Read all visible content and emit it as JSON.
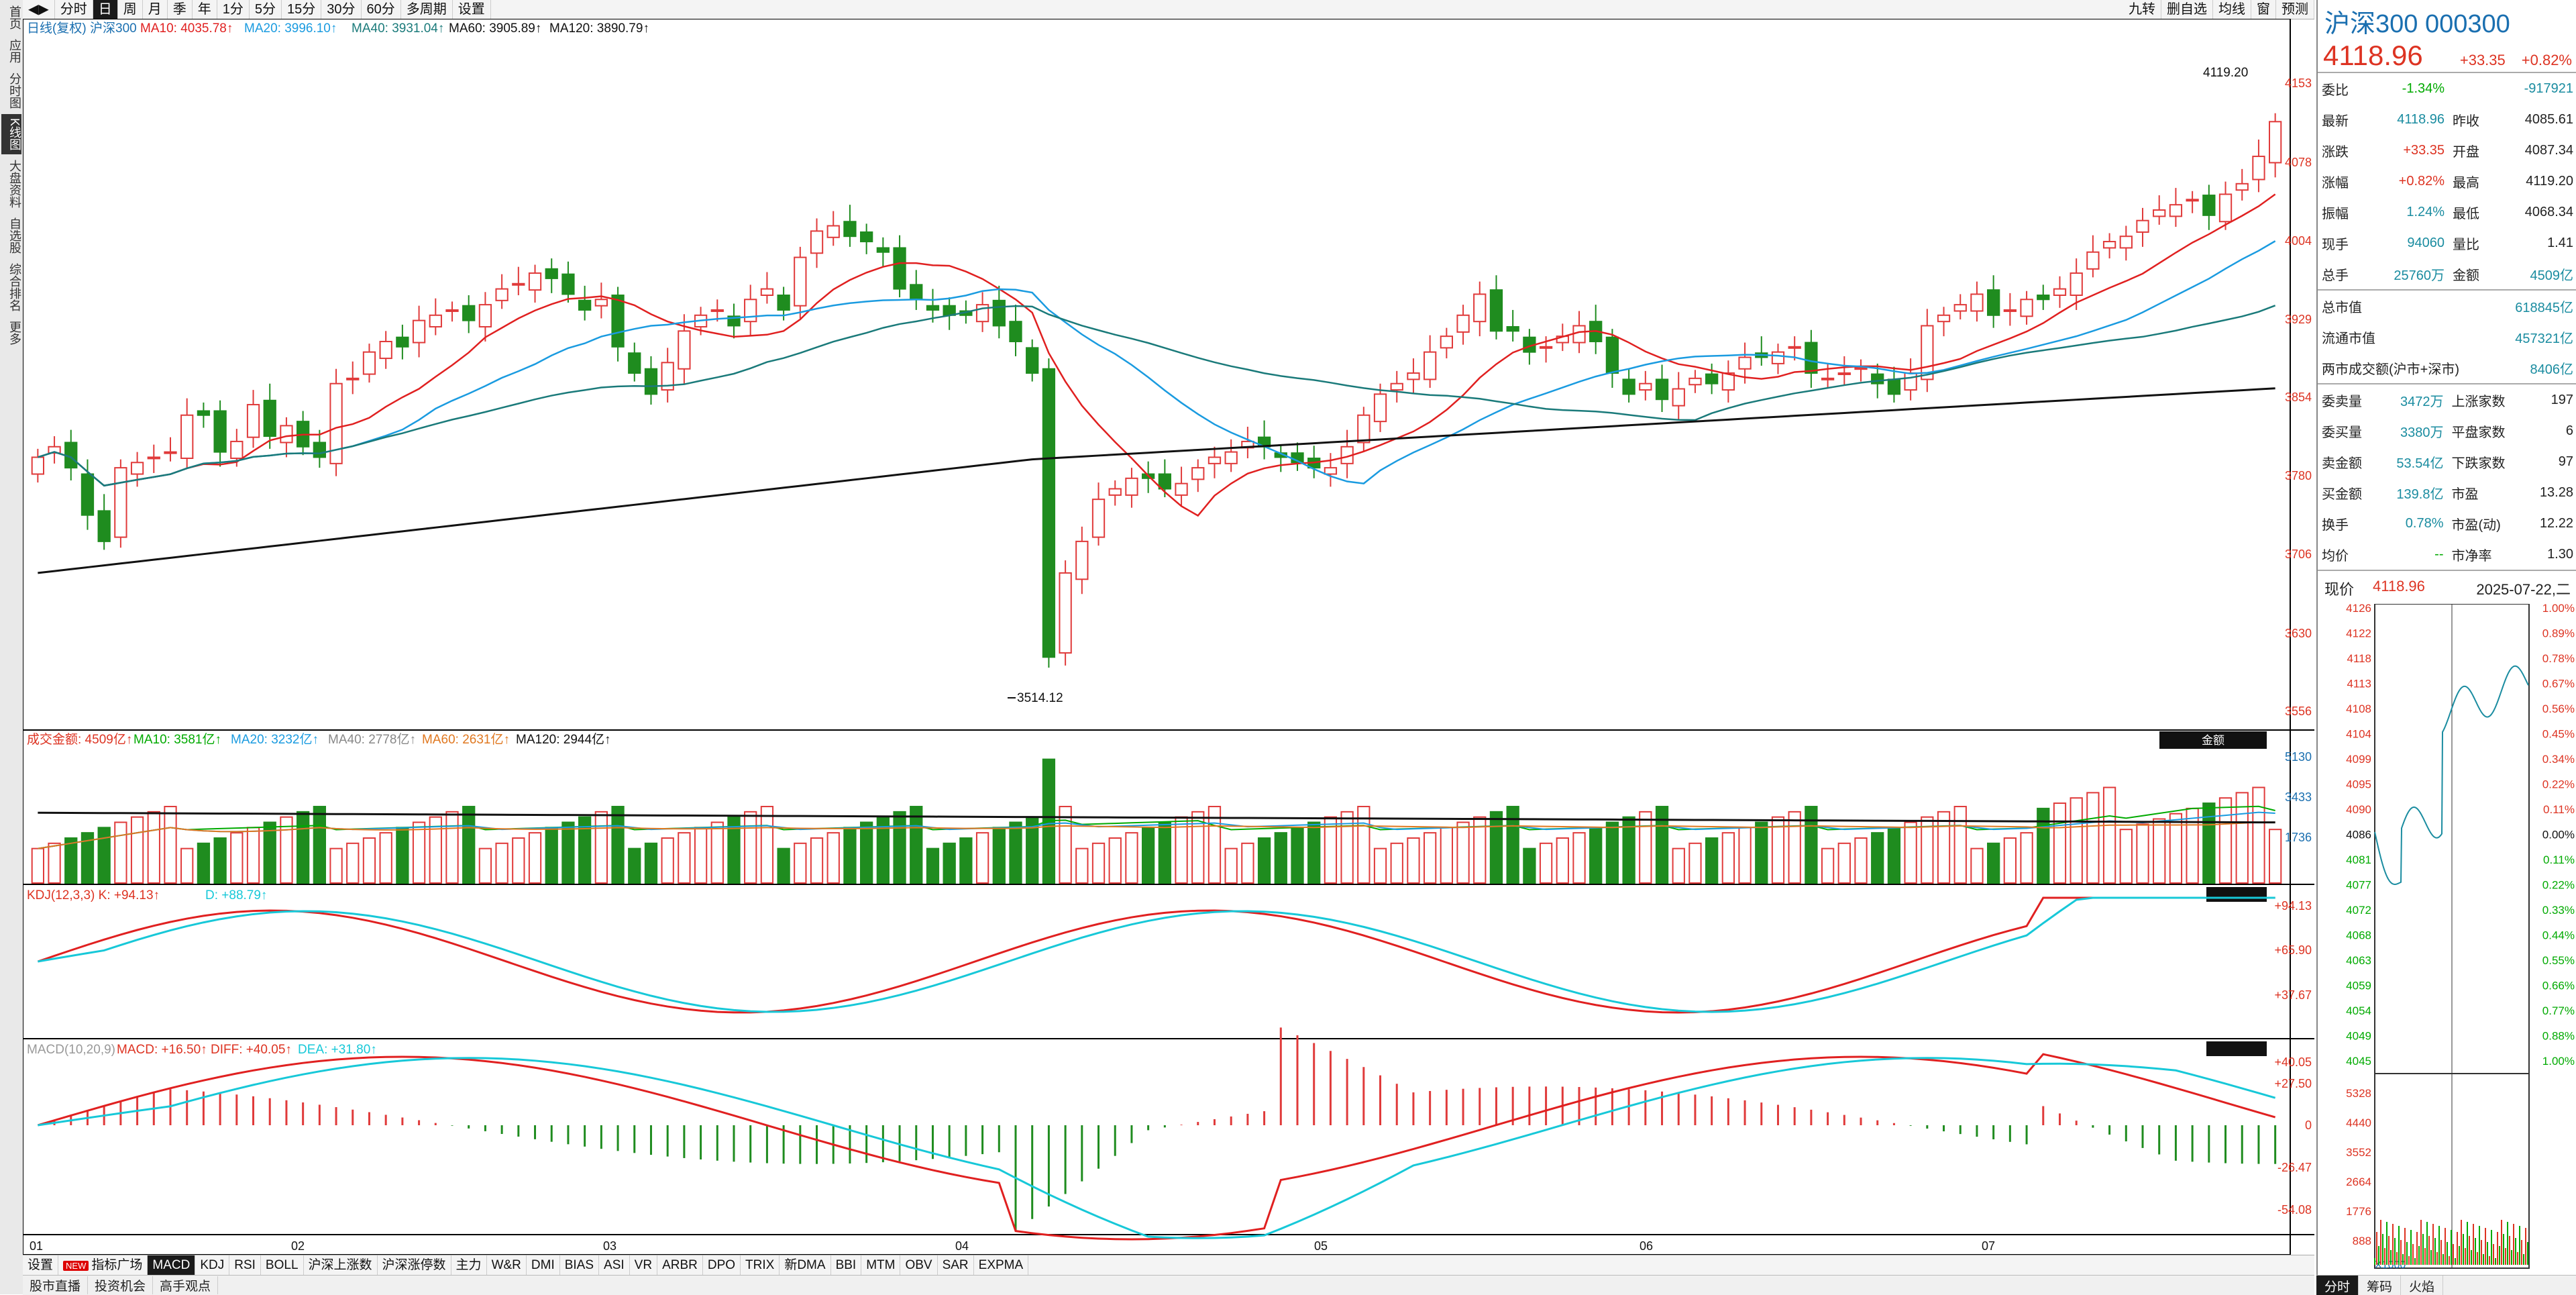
{
  "left_nav": [
    "首页",
    "应用",
    "分时图",
    "K线图",
    "大盘资料",
    "自选股",
    "综合排名",
    "更多"
  ],
  "left_nav_active": 3,
  "top_tabs": [
    "分时",
    "日",
    "周",
    "月",
    "季",
    "年",
    "1分",
    "5分",
    "15分",
    "30分",
    "60分",
    "多周期",
    "设置"
  ],
  "top_tab_active": 1,
  "top_right": [
    "九转",
    "删自选",
    "均线",
    "窗",
    "预测"
  ],
  "header": {
    "type": "日线(复权)",
    "name": "沪深300",
    "ma10": "MA10: 4035.78↑",
    "ma20": "MA20: 3996.10↑",
    "ma40": "MA40: 3931.04↑",
    "ma60": "MA60: 3905.89↑",
    "ma120": "MA120: 3890.79↑"
  },
  "price_axis": [
    "4153",
    "4078",
    "4004",
    "3929",
    "3854",
    "3780",
    "3706",
    "3630",
    "3556"
  ],
  "high_label": "4119.20",
  "low_label": "3514.12",
  "volume": {
    "header": "成交金额: 4509亿↑",
    "ma10": "MA10: 3581亿↑",
    "ma20": "MA20: 3232亿↑",
    "ma40": "MA40: 2778亿↑",
    "ma60": "MA60: 2631亿↑",
    "ma120": "MA120: 2944亿↑",
    "axis": [
      "5130",
      "3433",
      "1736"
    ],
    "button": "金额"
  },
  "kdj": {
    "header": "KDJ(12,3,3) K: +94.13↑",
    "d": "D: +88.79↑",
    "axis": [
      "+94.13",
      "+65.90",
      "+37.67"
    ]
  },
  "macd": {
    "header": "MACD(10,20,9)",
    "macd": "MACD: +16.50↑",
    "diff": "DIFF: +40.05↑",
    "dea": "DEA: +31.80↑",
    "axis": [
      "+40.05",
      "+27.50",
      "0",
      "-26.47",
      "-54.08"
    ]
  },
  "months": [
    "01",
    "02",
    "03",
    "04",
    "05",
    "06",
    "07"
  ],
  "bottom_tabs": [
    "设置",
    "指标广场",
    "MACD",
    "KDJ",
    "RSI",
    "BOLL",
    "沪深上涨数",
    "沪深涨停数",
    "主力",
    "W&R",
    "DMI",
    "BIAS",
    "ASI",
    "VR",
    "ARBR",
    "DPO",
    "TRIX",
    "新DMA",
    "BBI",
    "MTM",
    "OBV",
    "SAR",
    "EXPMA"
  ],
  "bottom_tab_active": 2,
  "new_badge": "NEW",
  "bottom_row": [
    "股市直播",
    "投资机会",
    "高手观点"
  ],
  "colors": {
    "up": "#e03a3a",
    "down": "#1f8c1f",
    "ma10": "#e02020",
    "ma20": "#1a9be0",
    "ma40": "#1a7a7a",
    "ma60": "#e07820",
    "ma120": "#111111",
    "k": "#e02020",
    "d": "#17c8d8"
  },
  "panel": {
    "title": "沪深300 000300",
    "price": "4118.96",
    "change": "+33.35",
    "change_pct": "+0.82%",
    "rows": [
      [
        "委比",
        "-1.34%",
        "",
        "-917921"
      ],
      [
        "最新",
        "4118.96",
        "昨收",
        "4085.61"
      ],
      [
        "涨跌",
        "+33.35",
        "开盘",
        "4087.34"
      ],
      [
        "涨幅",
        "+0.82%",
        "最高",
        "4119.20"
      ],
      [
        "振幅",
        "1.24%",
        "最低",
        "4068.34"
      ],
      [
        "现手",
        "94060",
        "量比",
        "1.41"
      ],
      [
        "总手",
        "25760万",
        "金额",
        "4509亿"
      ]
    ],
    "rows2": [
      [
        "总市值",
        "618845亿"
      ],
      [
        "流通市值",
        "457321亿"
      ],
      [
        "两市成交额(沪市+深市)",
        "8406亿"
      ]
    ],
    "rows3": [
      [
        "委卖量",
        "3472万",
        "上涨家数",
        "197"
      ],
      [
        "委买量",
        "3380万",
        "平盘家数",
        "6"
      ],
      [
        "卖金额",
        "53.54亿",
        "下跌家数",
        "97"
      ],
      [
        "买金额",
        "139.8亿",
        "市盈",
        "13.28"
      ],
      [
        "换手",
        "0.78%",
        "市盈(动)",
        "12.22"
      ],
      [
        "均价",
        "--",
        "市净率",
        "1.30"
      ]
    ],
    "now_label": "现价",
    "now_price": "4118.96",
    "now_date": "2025-07-22,二",
    "mini_left": [
      "4126",
      "4122",
      "4118",
      "4113",
      "4108",
      "4104",
      "4099",
      "4095",
      "4090",
      "4086",
      "4081",
      "4077",
      "4072",
      "4068",
      "4063",
      "4059",
      "4054",
      "4049",
      "4045"
    ],
    "mini_right": [
      "1.00%",
      "0.89%",
      "0.78%",
      "0.67%",
      "0.56%",
      "0.45%",
      "0.34%",
      "0.22%",
      "0.11%",
      "0.00%",
      "0.11%",
      "0.22%",
      "0.33%",
      "0.44%",
      "0.55%",
      "0.66%",
      "0.77%",
      "0.88%",
      "1.00%"
    ],
    "mini_vol": [
      "5328",
      "4440",
      "3552",
      "2664",
      "1776",
      "888"
    ],
    "mini_vol_unit": "X1000",
    "bottom": [
      "分时",
      "筹码",
      "火焰"
    ]
  }
}
